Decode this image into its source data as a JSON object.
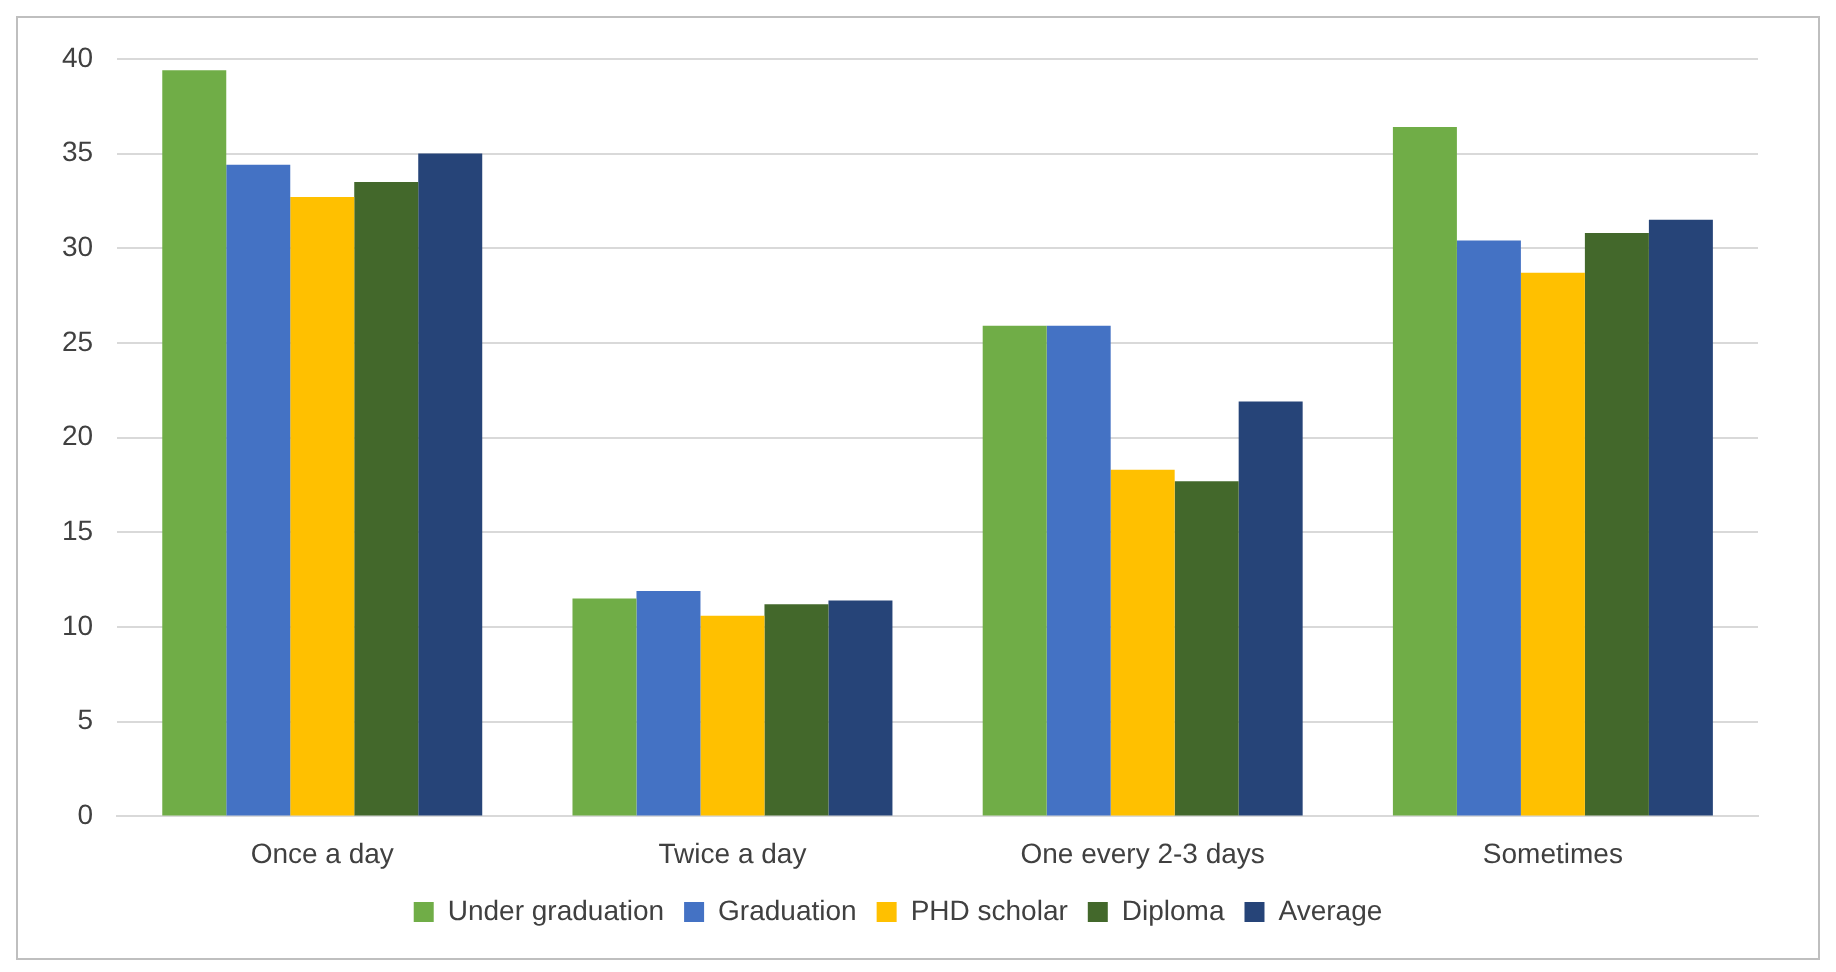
{
  "chart_data": {
    "type": "bar",
    "categories": [
      "Once a day",
      "Twice a day",
      "One every 2-3 days",
      "Sometimes"
    ],
    "series": [
      {
        "name": "Under graduation",
        "color": "#70ad47",
        "values": [
          39.4,
          11.5,
          25.9,
          36.4
        ]
      },
      {
        "name": "Graduation",
        "color": "#4472c4",
        "values": [
          34.4,
          11.9,
          25.9,
          30.4
        ]
      },
      {
        "name": "PHD scholar",
        "color": "#ffc000",
        "values": [
          32.7,
          10.6,
          18.3,
          28.7
        ]
      },
      {
        "name": "Diploma",
        "color": "#43682b",
        "values": [
          33.5,
          11.2,
          17.7,
          30.8
        ]
      },
      {
        "name": "Average",
        "color": "#264478",
        "values": [
          35.0,
          11.4,
          21.9,
          31.5
        ]
      }
    ],
    "ylim": [
      0,
      40
    ],
    "yticks": [
      0,
      5,
      10,
      15,
      20,
      25,
      30,
      35,
      40
    ],
    "grid": "y",
    "legend": "bottom"
  }
}
